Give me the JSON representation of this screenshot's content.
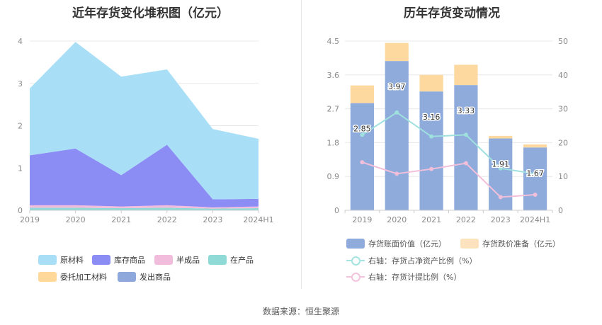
{
  "left_chart": {
    "title": "近年存货变化堆积图（亿元）",
    "legend": [
      {
        "label": "原材料",
        "color": "#a8dff7"
      },
      {
        "label": "库存商品",
        "color": "#8c8cf5"
      },
      {
        "label": "半成品",
        "color": "#f2bddc"
      },
      {
        "label": "在产品",
        "color": "#8fdad6"
      },
      {
        "label": "委托加工材料",
        "color": "#ffd89a"
      },
      {
        "label": "发出商品",
        "color": "#8ea8dc"
      }
    ]
  },
  "right_chart": {
    "title": "历年存货变动情况",
    "legend": [
      {
        "label": "存货账面价值（亿元）",
        "color": "#8eabdc"
      },
      {
        "label": "存货跌价准备（亿元）",
        "color": "#fde3bd"
      },
      {
        "label": "右轴：存货占净资产比例（%）",
        "color": "#a6e4e2"
      },
      {
        "label": "右轴：存货计提比例（%）",
        "color": "#f4c3de"
      }
    ]
  },
  "source": "数据来源：恒生聚源",
  "chart_data": [
    {
      "type": "area",
      "stacked": true,
      "title": "近年存货变化堆积图（亿元）",
      "categories": [
        "2019",
        "2020",
        "2021",
        "2022",
        "2023",
        "2024H1"
      ],
      "ylim": [
        0,
        4
      ],
      "yticks": [
        0,
        1,
        2,
        3,
        4
      ],
      "grid": true,
      "legend_position": "bottom",
      "series": [
        {
          "name": "在产品",
          "values": [
            0.06,
            0.06,
            0.05,
            0.06,
            0.04,
            0.05
          ]
        },
        {
          "name": "半成品",
          "values": [
            0.06,
            0.06,
            0.04,
            0.06,
            0.03,
            0.04
          ]
        },
        {
          "name": "库存商品",
          "values": [
            1.18,
            1.34,
            0.74,
            1.43,
            0.19,
            0.18
          ]
        },
        {
          "name": "原材料",
          "values": [
            1.58,
            2.52,
            2.33,
            1.78,
            1.66,
            1.42
          ]
        }
      ]
    },
    {
      "type": "bar",
      "stacked": true,
      "title": "历年存货变动情况",
      "categories": [
        "2019",
        "2020",
        "2021",
        "2022",
        "2023",
        "2024H1"
      ],
      "ylim": [
        0,
        4.5
      ],
      "yticks": [
        0,
        0.9,
        1.8,
        2.7,
        3.6,
        4.5
      ],
      "y2lim": [
        0,
        50
      ],
      "y2ticks": [
        0,
        10,
        20,
        30,
        40,
        50
      ],
      "grid": true,
      "legend_position": "bottom",
      "series": [
        {
          "name": "存货账面价值（亿元）",
          "values": [
            2.85,
            3.97,
            3.16,
            3.33,
            1.91,
            1.67
          ],
          "data_labels": [
            "2.85",
            "3.97",
            "3.16",
            "3.33",
            "1.91",
            "1.67"
          ]
        },
        {
          "name": "存货跌价准备（亿元）",
          "values": [
            0.47,
            0.48,
            0.44,
            0.54,
            0.07,
            0.08
          ]
        },
        {
          "name": "右轴：存货占净资产比例（%）",
          "axis": "right",
          "type": "line",
          "values": [
            22.3,
            28.9,
            21.8,
            22.3,
            12.4,
            10.8
          ]
        },
        {
          "name": "右轴：存货计提比例（%）",
          "axis": "right",
          "type": "line",
          "values": [
            14.2,
            10.8,
            12.2,
            13.9,
            3.9,
            4.6
          ]
        }
      ]
    }
  ]
}
